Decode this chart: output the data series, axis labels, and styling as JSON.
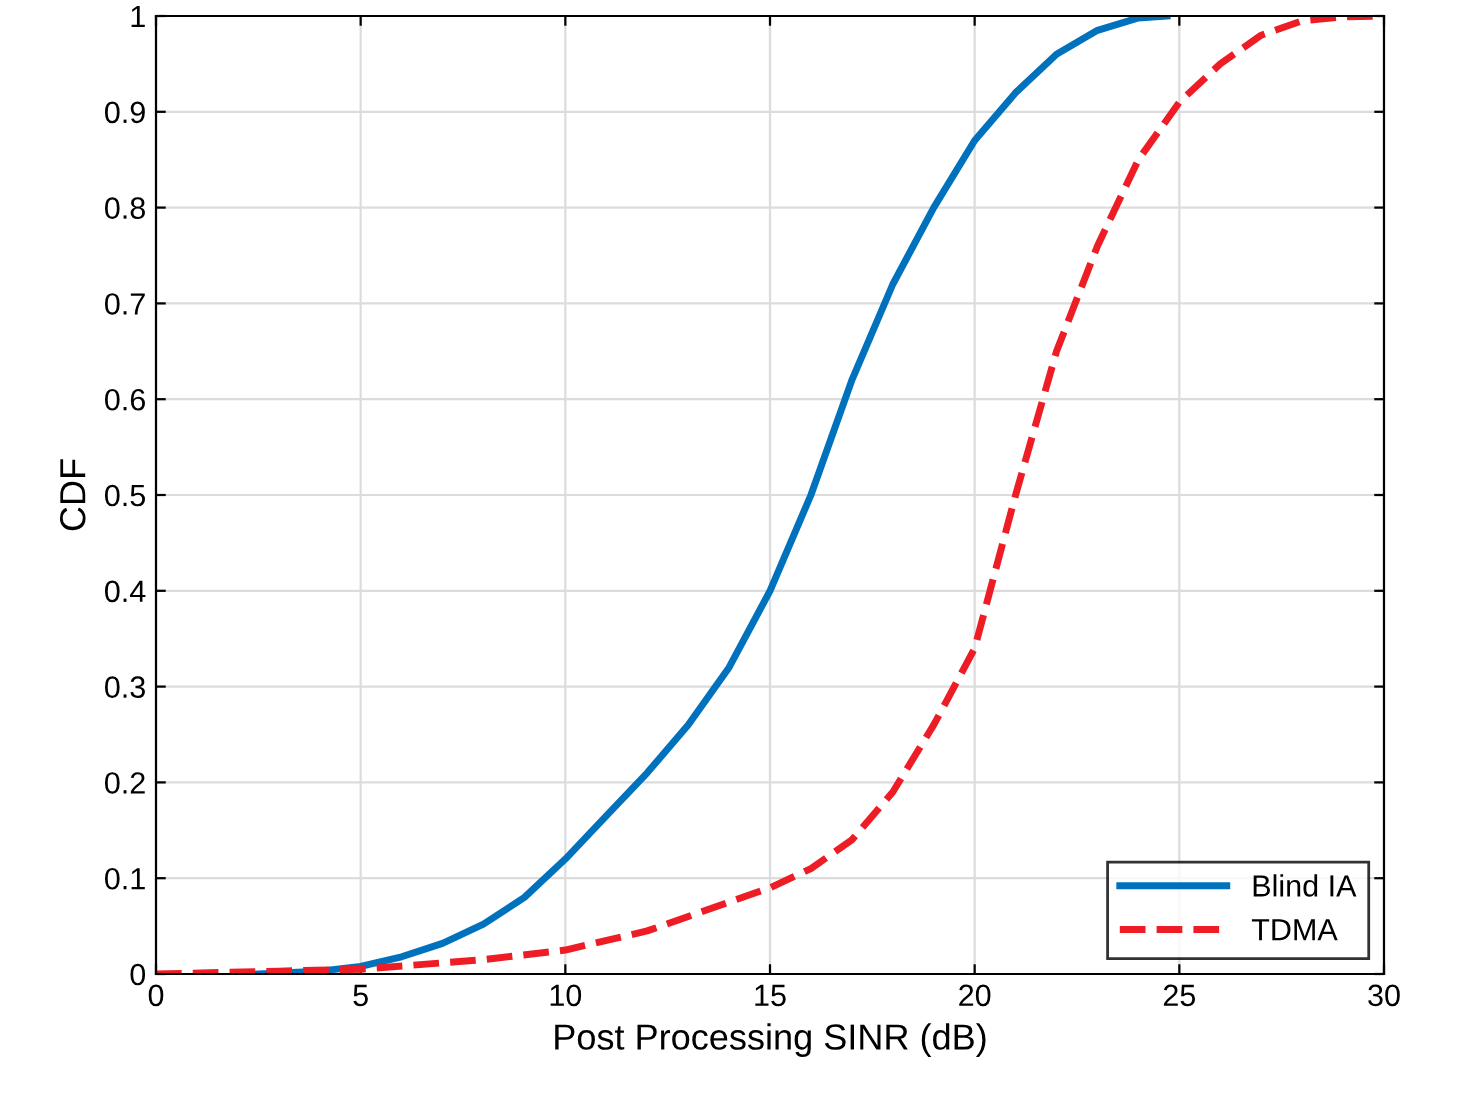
{
  "chart_data": {
    "type": "line",
    "xlabel": "Post Processing SINR (dB)",
    "ylabel": "CDF",
    "xlim": [
      0,
      30
    ],
    "ylim": [
      0,
      1
    ],
    "xticks": [
      0,
      5,
      10,
      15,
      20,
      25,
      30
    ],
    "yticks": [
      0,
      0.1,
      0.2,
      0.3,
      0.4,
      0.5,
      0.6,
      0.7,
      0.8,
      0.9,
      1
    ],
    "grid": true,
    "legend": "bottom right",
    "series": [
      {
        "name": "Blind IA",
        "color": "#0072bd",
        "line_style": "solid",
        "x": [
          2.5,
          4,
          5,
          6,
          7,
          8,
          9,
          10,
          11,
          12,
          13,
          14,
          15,
          16,
          17,
          18,
          19,
          20,
          21,
          22,
          23,
          24,
          24.7
        ],
        "values": [
          0,
          0.003,
          0.008,
          0.018,
          0.032,
          0.052,
          0.08,
          0.12,
          0.165,
          0.21,
          0.26,
          0.32,
          0.4,
          0.5,
          0.62,
          0.72,
          0.8,
          0.87,
          0.92,
          0.96,
          0.985,
          0.998,
          1
        ]
      },
      {
        "name": "TDMA",
        "color": "#ee1c25",
        "line_style": "dashed",
        "x": [
          0,
          3,
          5,
          8,
          10,
          12,
          14,
          15,
          16,
          17,
          18,
          19,
          20,
          20.5,
          21,
          22,
          23,
          24,
          25,
          26,
          27,
          28,
          29,
          30
        ],
        "values": [
          0,
          0.003,
          0.005,
          0.015,
          0.025,
          0.045,
          0.075,
          0.09,
          0.11,
          0.14,
          0.19,
          0.26,
          0.34,
          0.42,
          0.5,
          0.65,
          0.76,
          0.85,
          0.91,
          0.95,
          0.98,
          0.995,
          0.999,
          1
        ]
      }
    ]
  }
}
